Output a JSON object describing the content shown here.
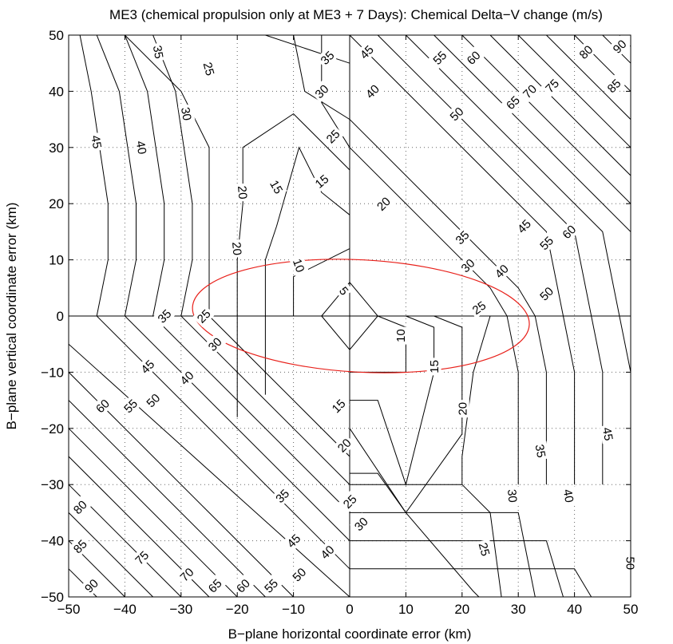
{
  "chart_data": {
    "type": "contour",
    "title": "ME3 (chemical propulsion only at ME3 + 7 Days): Chemical Delta−V change (m/s)",
    "xlabel": "B−plane horizontal coordinate error (km)",
    "ylabel": "B−plane vertical coordinate error (km)",
    "xlim": [
      -50,
      50
    ],
    "ylim": [
      -50,
      50
    ],
    "xticks": [
      -50,
      -40,
      -30,
      -20,
      -10,
      0,
      10,
      20,
      30,
      40,
      50
    ],
    "yticks": [
      -50,
      -40,
      -30,
      -20,
      -10,
      0,
      10,
      20,
      30,
      40,
      50
    ],
    "xtick_labels": [
      "−50",
      "−40",
      "−30",
      "−20",
      "−10",
      "0",
      "10",
      "20",
      "30",
      "40",
      "50"
    ],
    "ytick_labels": [
      "−50",
      "−40",
      "−30",
      "−20",
      "−10",
      "0",
      "10",
      "20",
      "30",
      "40",
      "50"
    ],
    "grid": "dotted",
    "colors": {
      "contour": "#000000",
      "ellipse": "#e8201a",
      "grid": "#666666"
    },
    "ellipse": {
      "center": [
        2,
        0
      ],
      "semi_axes": [
        30,
        10
      ],
      "rotation_deg": -3
    },
    "contour_levels": [
      5,
      10,
      15,
      20,
      25,
      30,
      35,
      40,
      45,
      50,
      55,
      60,
      65,
      70,
      75,
      80,
      85,
      90
    ],
    "contour_lines": [
      {
        "level": 5,
        "points": [
          [
            -5,
            0
          ],
          [
            0,
            6
          ],
          [
            5,
            0
          ],
          [
            0,
            -6
          ],
          [
            -5,
            0
          ]
        ]
      },
      {
        "level": 10,
        "points": [
          [
            -10,
            0
          ],
          [
            -10,
            7
          ],
          [
            0,
            12
          ],
          [
            0,
            -10
          ],
          [
            10,
            -10
          ],
          [
            10,
            -2
          ],
          [
            5,
            0
          ]
        ]
      },
      {
        "level": 15,
        "points": [
          [
            -15,
            -14
          ],
          [
            -15,
            10
          ],
          [
            -13,
            16
          ],
          [
            -9,
            30
          ],
          [
            -5,
            22
          ],
          [
            0,
            18
          ],
          [
            0,
            -15
          ],
          [
            5,
            -15
          ],
          [
            10,
            -30
          ],
          [
            15,
            -10
          ],
          [
            15,
            -2
          ],
          [
            10,
            0
          ]
        ]
      },
      {
        "level": 20,
        "points": [
          [
            -20,
            -18
          ],
          [
            -20,
            10
          ],
          [
            -19,
            20
          ],
          [
            -19,
            30
          ],
          [
            -10,
            36
          ],
          [
            0,
            26
          ],
          [
            0,
            -20
          ],
          [
            10,
            -35
          ],
          [
            20,
            -21
          ],
          [
            20,
            -2
          ],
          [
            15,
            0
          ]
        ]
      },
      {
        "level": 25,
        "points": [
          [
            -40,
            50
          ],
          [
            -30,
            40
          ],
          [
            -25,
            30
          ],
          [
            -25,
            10
          ],
          [
            -25,
            0
          ],
          [
            0,
            -25
          ],
          [
            0,
            -28
          ],
          [
            5,
            -28
          ],
          [
            10,
            -35
          ],
          [
            22,
            -49
          ],
          [
            23,
            -50
          ]
        ]
      },
      {
        "level": 25,
        "points": [
          [
            -5,
            50
          ],
          [
            -5,
            38
          ],
          [
            0,
            30
          ],
          [
            0,
            0
          ],
          [
            25,
            0
          ],
          [
            22,
            -10
          ],
          [
            20,
            -25
          ],
          [
            20,
            -30
          ]
        ]
      },
      {
        "level": 30,
        "points": [
          [
            -35,
            50
          ],
          [
            -31,
            40
          ],
          [
            -28,
            20
          ],
          [
            -28,
            10
          ],
          [
            -30,
            0
          ],
          [
            0,
            -30
          ],
          [
            20,
            -30
          ],
          [
            25,
            -35
          ],
          [
            27,
            -50
          ]
        ]
      },
      {
        "level": 30,
        "points": [
          [
            -10,
            50
          ],
          [
            -8,
            40
          ],
          [
            0,
            35
          ],
          [
            0,
            30
          ],
          [
            25,
            5
          ],
          [
            28,
            0
          ],
          [
            30,
            -10
          ],
          [
            30,
            -30
          ]
        ]
      },
      {
        "level": 35,
        "points": [
          [
            -40,
            50
          ],
          [
            -36,
            40
          ],
          [
            -33,
            20
          ],
          [
            -33,
            10
          ],
          [
            -35,
            0
          ],
          [
            0,
            -35
          ],
          [
            30,
            -35
          ],
          [
            33,
            -50
          ]
        ]
      },
      {
        "level": 35,
        "points": [
          [
            -15,
            50
          ],
          [
            0,
            45
          ],
          [
            0,
            35
          ],
          [
            30,
            5
          ],
          [
            33,
            0
          ],
          [
            35,
            -10
          ],
          [
            35,
            -30
          ]
        ]
      },
      {
        "level": 40,
        "points": [
          [
            -45,
            50
          ],
          [
            -41,
            40
          ],
          [
            -38,
            20
          ],
          [
            -38,
            10
          ],
          [
            -40,
            0
          ],
          [
            0,
            -40
          ],
          [
            35,
            -40
          ],
          [
            38,
            -50
          ]
        ]
      },
      {
        "level": 40,
        "points": [
          [
            -20,
            50
          ],
          [
            0,
            50
          ],
          [
            35,
            15
          ],
          [
            38,
            0
          ],
          [
            40,
            -10
          ],
          [
            40,
            -30
          ]
        ]
      },
      {
        "level": 45,
        "points": [
          [
            -48,
            50
          ],
          [
            -46,
            40
          ],
          [
            -43,
            20
          ],
          [
            -43,
            10
          ],
          [
            -45,
            0
          ],
          [
            0,
            -45
          ],
          [
            40,
            -45
          ],
          [
            43,
            -50
          ]
        ]
      },
      {
        "level": 45,
        "points": [
          [
            5,
            50
          ],
          [
            40,
            15
          ],
          [
            43,
            0
          ],
          [
            45,
            -10
          ],
          [
            45,
            -30
          ]
        ]
      },
      {
        "level": 50,
        "points": [
          [
            -50,
            -5
          ],
          [
            0,
            -50
          ]
        ]
      },
      {
        "level": 50,
        "points": [
          [
            10,
            50
          ],
          [
            45,
            15
          ],
          [
            48,
            0
          ],
          [
            50,
            -10
          ]
        ]
      },
      {
        "level": 55,
        "points": [
          [
            -50,
            -10
          ],
          [
            -10,
            -50
          ]
        ]
      },
      {
        "level": 55,
        "points": [
          [
            15,
            50
          ],
          [
            50,
            15
          ]
        ]
      },
      {
        "level": 60,
        "points": [
          [
            -50,
            -15
          ],
          [
            -15,
            -50
          ]
        ]
      },
      {
        "level": 60,
        "points": [
          [
            20,
            50
          ],
          [
            50,
            20
          ]
        ]
      },
      {
        "level": 65,
        "points": [
          [
            -50,
            -20
          ],
          [
            -20,
            -50
          ]
        ]
      },
      {
        "level": 65,
        "points": [
          [
            25,
            50
          ],
          [
            50,
            25
          ]
        ]
      },
      {
        "level": 70,
        "points": [
          [
            -50,
            -25
          ],
          [
            -25,
            -50
          ]
        ]
      },
      {
        "level": 70,
        "points": [
          [
            30,
            50
          ],
          [
            50,
            30
          ]
        ]
      },
      {
        "level": 75,
        "points": [
          [
            -50,
            -30
          ],
          [
            -30,
            -50
          ]
        ]
      },
      {
        "level": 75,
        "points": [
          [
            35,
            50
          ],
          [
            50,
            35
          ]
        ]
      },
      {
        "level": 80,
        "points": [
          [
            -50,
            -35
          ],
          [
            -35,
            -50
          ]
        ]
      },
      {
        "level": 80,
        "points": [
          [
            40,
            50
          ],
          [
            50,
            40
          ]
        ]
      },
      {
        "level": 85,
        "points": [
          [
            -50,
            -40
          ],
          [
            -40,
            -50
          ]
        ]
      },
      {
        "level": 85,
        "points": [
          [
            45,
            50
          ],
          [
            50,
            45
          ]
        ]
      },
      {
        "level": 90,
        "points": [
          [
            -50,
            -45
          ],
          [
            -45,
            -50
          ]
        ]
      },
      {
        "level": 90,
        "points": [
          [
            48,
            50
          ],
          [
            50,
            48
          ]
        ]
      }
    ],
    "contour_labels": [
      {
        "text": "5",
        "x": -1,
        "y": 4.5,
        "angle": -50
      },
      {
        "text": "10",
        "x": -9,
        "y": 9,
        "angle": -70
      },
      {
        "text": "10",
        "x": 9,
        "y": -3.5,
        "angle": 90
      },
      {
        "text": "15",
        "x": -13,
        "y": 23,
        "angle": -60
      },
      {
        "text": "15",
        "x": -5,
        "y": 24,
        "angle": 40
      },
      {
        "text": "15",
        "x": 15,
        "y": -9,
        "angle": 90
      },
      {
        "text": "15",
        "x": -2,
        "y": -16,
        "angle": 45
      },
      {
        "text": "20",
        "x": -19,
        "y": 22,
        "angle": -85
      },
      {
        "text": "20",
        "x": -20,
        "y": 12,
        "angle": -85
      },
      {
        "text": "20",
        "x": 6,
        "y": 20,
        "angle": 45
      },
      {
        "text": "20",
        "x": 20,
        "y": -16.5,
        "angle": 90
      },
      {
        "text": "20",
        "x": -1,
        "y": -23,
        "angle": 45
      },
      {
        "text": "25",
        "x": -25,
        "y": 44,
        "angle": -75
      },
      {
        "text": "25",
        "x": -3,
        "y": 32,
        "angle": 45
      },
      {
        "text": "25",
        "x": -26,
        "y": 0,
        "angle": 45
      },
      {
        "text": "25",
        "x": 23,
        "y": 1.5,
        "angle": 35
      },
      {
        "text": "25",
        "x": 0,
        "y": -33,
        "angle": 45
      },
      {
        "text": "25",
        "x": 24,
        "y": -41.5,
        "angle": -75
      },
      {
        "text": "30",
        "x": -29,
        "y": 36,
        "angle": -80
      },
      {
        "text": "30",
        "x": -5,
        "y": 40,
        "angle": 45
      },
      {
        "text": "30",
        "x": -24,
        "y": -5,
        "angle": 45
      },
      {
        "text": "30",
        "x": 21,
        "y": 9,
        "angle": 45
      },
      {
        "text": "30",
        "x": 2,
        "y": -37,
        "angle": 45
      },
      {
        "text": "30",
        "x": 29,
        "y": -32,
        "angle": -85
      },
      {
        "text": "35",
        "x": -34,
        "y": 47,
        "angle": -80
      },
      {
        "text": "35",
        "x": -4,
        "y": 46,
        "angle": 45
      },
      {
        "text": "35",
        "x": -33,
        "y": 0,
        "angle": 45
      },
      {
        "text": "35",
        "x": 20,
        "y": 14,
        "angle": 45
      },
      {
        "text": "35",
        "x": -12,
        "y": -32,
        "angle": 45
      },
      {
        "text": "35",
        "x": 34,
        "y": -24,
        "angle": -80
      },
      {
        "text": "40",
        "x": -37,
        "y": 30,
        "angle": -80
      },
      {
        "text": "40",
        "x": 4,
        "y": 40,
        "angle": 45
      },
      {
        "text": "40",
        "x": -29,
        "y": -11,
        "angle": 45
      },
      {
        "text": "40",
        "x": 27,
        "y": 8,
        "angle": 45
      },
      {
        "text": "40",
        "x": -4,
        "y": -42,
        "angle": 45
      },
      {
        "text": "40",
        "x": 39,
        "y": -32,
        "angle": -80
      },
      {
        "text": "45",
        "x": -45,
        "y": 31,
        "angle": -80
      },
      {
        "text": "45",
        "x": 3,
        "y": 47,
        "angle": 45
      },
      {
        "text": "45",
        "x": -36,
        "y": -9,
        "angle": 45
      },
      {
        "text": "45",
        "x": 31,
        "y": 16,
        "angle": 45
      },
      {
        "text": "45",
        "x": -10,
        "y": -40,
        "angle": 45
      },
      {
        "text": "45",
        "x": 46,
        "y": -21,
        "angle": -80
      },
      {
        "text": "50",
        "x": -35,
        "y": -15,
        "angle": 45
      },
      {
        "text": "50",
        "x": 19,
        "y": 36,
        "angle": 45
      },
      {
        "text": "50",
        "x": 35,
        "y": 4,
        "angle": 45
      },
      {
        "text": "50",
        "x": -9,
        "y": -46,
        "angle": 45
      },
      {
        "text": "50",
        "x": 50,
        "y": -44,
        "angle": -90
      },
      {
        "text": "55",
        "x": 16,
        "y": 46,
        "angle": 45
      },
      {
        "text": "55",
        "x": -39,
        "y": -16,
        "angle": 45
      },
      {
        "text": "55",
        "x": 35,
        "y": 13,
        "angle": 45
      },
      {
        "text": "55",
        "x": -14,
        "y": -48,
        "angle": 45
      },
      {
        "text": "60",
        "x": 22,
        "y": 46,
        "angle": 45
      },
      {
        "text": "60",
        "x": -44,
        "y": -16,
        "angle": 45
      },
      {
        "text": "60",
        "x": 39,
        "y": 15,
        "angle": 45
      },
      {
        "text": "60",
        "x": -19,
        "y": -48,
        "angle": 45
      },
      {
        "text": "65",
        "x": 29,
        "y": 38,
        "angle": 45
      },
      {
        "text": "65",
        "x": -24,
        "y": -48,
        "angle": 45
      },
      {
        "text": "70",
        "x": 32,
        "y": 40,
        "angle": 45
      },
      {
        "text": "70",
        "x": -29,
        "y": -46,
        "angle": 45
      },
      {
        "text": "75",
        "x": 36,
        "y": 41,
        "angle": 45
      },
      {
        "text": "75",
        "x": -37,
        "y": -43,
        "angle": 45
      },
      {
        "text": "80",
        "x": 42,
        "y": 47,
        "angle": 45
      },
      {
        "text": "80",
        "x": -48,
        "y": -34,
        "angle": 45
      },
      {
        "text": "85",
        "x": 47,
        "y": 41,
        "angle": 45
      },
      {
        "text": "85",
        "x": -48,
        "y": -41,
        "angle": 45
      },
      {
        "text": "90",
        "x": 48,
        "y": 48,
        "angle": 45
      },
      {
        "text": "90",
        "x": -46,
        "y": -48,
        "angle": 45
      }
    ]
  }
}
